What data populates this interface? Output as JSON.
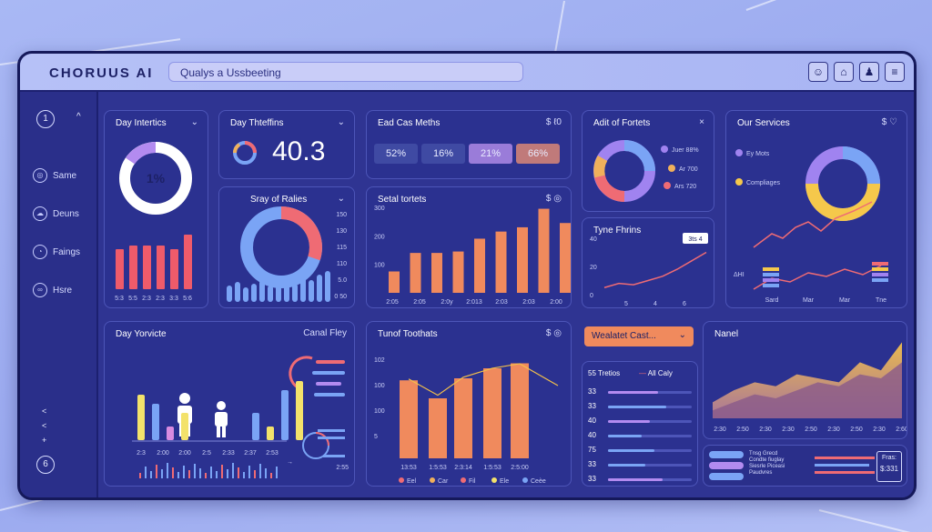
{
  "header": {
    "app_title": "CHORUUS AI",
    "search_value": "Qualys a Ussbeeting",
    "buttons": [
      "user-icon",
      "building-icon",
      "people-icon",
      "chart-icon"
    ]
  },
  "sidebar": {
    "top_badge": "1",
    "top_chevron": "^",
    "items": [
      {
        "label": "Same",
        "icon": "globe-icon"
      },
      {
        "label": "Deuns",
        "icon": "cloud-icon"
      },
      {
        "label": "Faings",
        "icon": "gauge-icon"
      },
      {
        "label": "Hsre",
        "icon": "link-icon"
      }
    ],
    "footer_chevrons": [
      "<",
      "<",
      "+"
    ],
    "bottom_badge": "6"
  },
  "panels": {
    "day_interactions": {
      "title": "Day Intertics",
      "control": "⌄",
      "donut_label": "1%",
      "ticks": [
        "5:3",
        "5:5",
        "2:3",
        "2:3",
        "3:3",
        "5:6"
      ],
      "bars": [
        0.55,
        0.6,
        0.6,
        0.6,
        0.55,
        0.75
      ],
      "bar_colors": [
        "#ef5b6a",
        "#ef5b6a",
        "#ef5b6a",
        "#ef5b6a",
        "#ef5b6a",
        "#ef5b6a"
      ]
    },
    "day_traffic": {
      "title": "Day Thteffins",
      "control": "⌄",
      "value": "40.3"
    },
    "each_metrics": {
      "title": "Ead Cas Meths",
      "control": "$ ℓ0",
      "chips": [
        "52%",
        "16%",
        "21%",
        "66%"
      ],
      "chip_colors": [
        "#3f4aa3",
        "#3f4aa3",
        "#9a7cd9",
        "#c07a7a"
      ]
    },
    "alert_forts": {
      "title": "Adit of Fortets",
      "control": "×",
      "legend": [
        {
          "label": "Juer 88%",
          "color": "#a083f0"
        },
        {
          "label": "Ar 700",
          "color": "#f0b05b"
        },
        {
          "label": "Ars 720",
          "color": "#ef6b74"
        }
      ]
    },
    "our_services": {
      "title": "Our Services",
      "control": "$ ♡",
      "legend": [
        {
          "label": "Ey Mots",
          "color": "#a083f0"
        },
        {
          "label": "Compliages",
          "color": "#f5c84b"
        }
      ],
      "x_ticks": [
        "Sard",
        "Mar",
        "Mar",
        "Tne"
      ],
      "axis_label": "ΔHI"
    },
    "story_ratios": {
      "title": "Sray of Ralies",
      "control": "⌄",
      "y_ticks": [
        "150",
        "130",
        "115",
        "110",
        "5.0",
        "0 50"
      ]
    },
    "setal_tortets": {
      "title": "Setal tortets",
      "control": "$ ◎",
      "y_ticks": [
        "300",
        "200",
        "100"
      ],
      "x_ticks": [
        "2:05",
        "2:05",
        "2:0y",
        "2:013",
        "2:03",
        "2:03",
        "2:00"
      ],
      "values": [
        75,
        140,
        140,
        145,
        190,
        215,
        230,
        295,
        245
      ]
    },
    "type_trends": {
      "title": "Tyne Fhrins",
      "tag": "3ts 4",
      "y_ticks": [
        "40",
        "20",
        "0"
      ],
      "x_ticks": [
        "5",
        "4",
        "6"
      ],
      "values": [
        5,
        8,
        7,
        10,
        13,
        18,
        24,
        30
      ]
    },
    "day_services": {
      "title": "Day Yorvicte",
      "right_label": "Canal Fley",
      "x_ticks": [
        "2:3",
        "2:00",
        "2:00",
        "2:5",
        "2:33",
        "2:37",
        "2:53"
      ],
      "values": [
        0.5,
        0.4,
        0.15,
        0.3,
        0.3,
        0.15,
        0.55,
        0.65
      ],
      "bar_colors": [
        "#f3e26b",
        "#7aa4f5",
        "#d98be0",
        "#f3e26b",
        "#7aa4f5",
        "#f3e26b",
        "#7aa4f5",
        "#f3e26b"
      ],
      "small_label": "2:55"
    },
    "top_toothats": {
      "title": "Tunof Toothats",
      "control": "$ ◎",
      "y_ticks": [
        "102",
        "100",
        "100",
        "5"
      ],
      "x_ticks": [
        "13:53",
        "1:5:53",
        "2:3:14",
        "1:5:53",
        "2:5:00"
      ],
      "values": [
        0.78,
        0.6,
        0.8,
        0.9,
        0.95
      ],
      "legend": [
        {
          "label": "Eel",
          "color": "#ef6b74"
        },
        {
          "label": "Car",
          "color": "#f0b05b"
        },
        {
          "label": "Fil",
          "color": "#ef6b74"
        },
        {
          "label": "Ele",
          "color": "#f3e26b"
        },
        {
          "label": "Ceèe",
          "color": "#7aa4f5"
        }
      ]
    },
    "wealthy_cast": {
      "dropdown": "Wealatet Cast...",
      "list_header_left": "55 Tretios",
      "list_header_right": "All Caly",
      "rows": [
        {
          "value": "33",
          "fill": 0.6,
          "color": "#b38bf0"
        },
        {
          "value": "33",
          "fill": 0.7,
          "color": "#7aa4f5"
        },
        {
          "value": "40",
          "fill": 0.5,
          "color": "#b38bf0"
        },
        {
          "value": "40",
          "fill": 0.4,
          "color": "#7aa4f5"
        },
        {
          "value": "75",
          "fill": 0.55,
          "color": "#7aa4f5"
        },
        {
          "value": "33",
          "fill": 0.45,
          "color": "#7aa4f5"
        },
        {
          "value": "33",
          "fill": 0.65,
          "color": "#b38bf0"
        }
      ]
    },
    "nanel": {
      "title": "Nanel",
      "x_ticks": [
        "2:30",
        "2:50",
        "2:30",
        "2:30",
        "2:50",
        "2:30",
        "2:50",
        "2:30",
        "2:60"
      ],
      "values_a": [
        0.2,
        0.35,
        0.45,
        0.4,
        0.55,
        0.5,
        0.45,
        0.7,
        0.6,
        0.95
      ],
      "values_b": [
        0.1,
        0.2,
        0.3,
        0.25,
        0.35,
        0.45,
        0.4,
        0.55,
        0.5,
        0.7
      ]
    },
    "trace_footer": {
      "lines": [
        "Tnsg Grecd",
        "Condte fiuglay",
        "Siesrle Piceasi",
        "Paudvres"
      ],
      "price_label": "Fras:",
      "price": "$:331"
    }
  }
}
